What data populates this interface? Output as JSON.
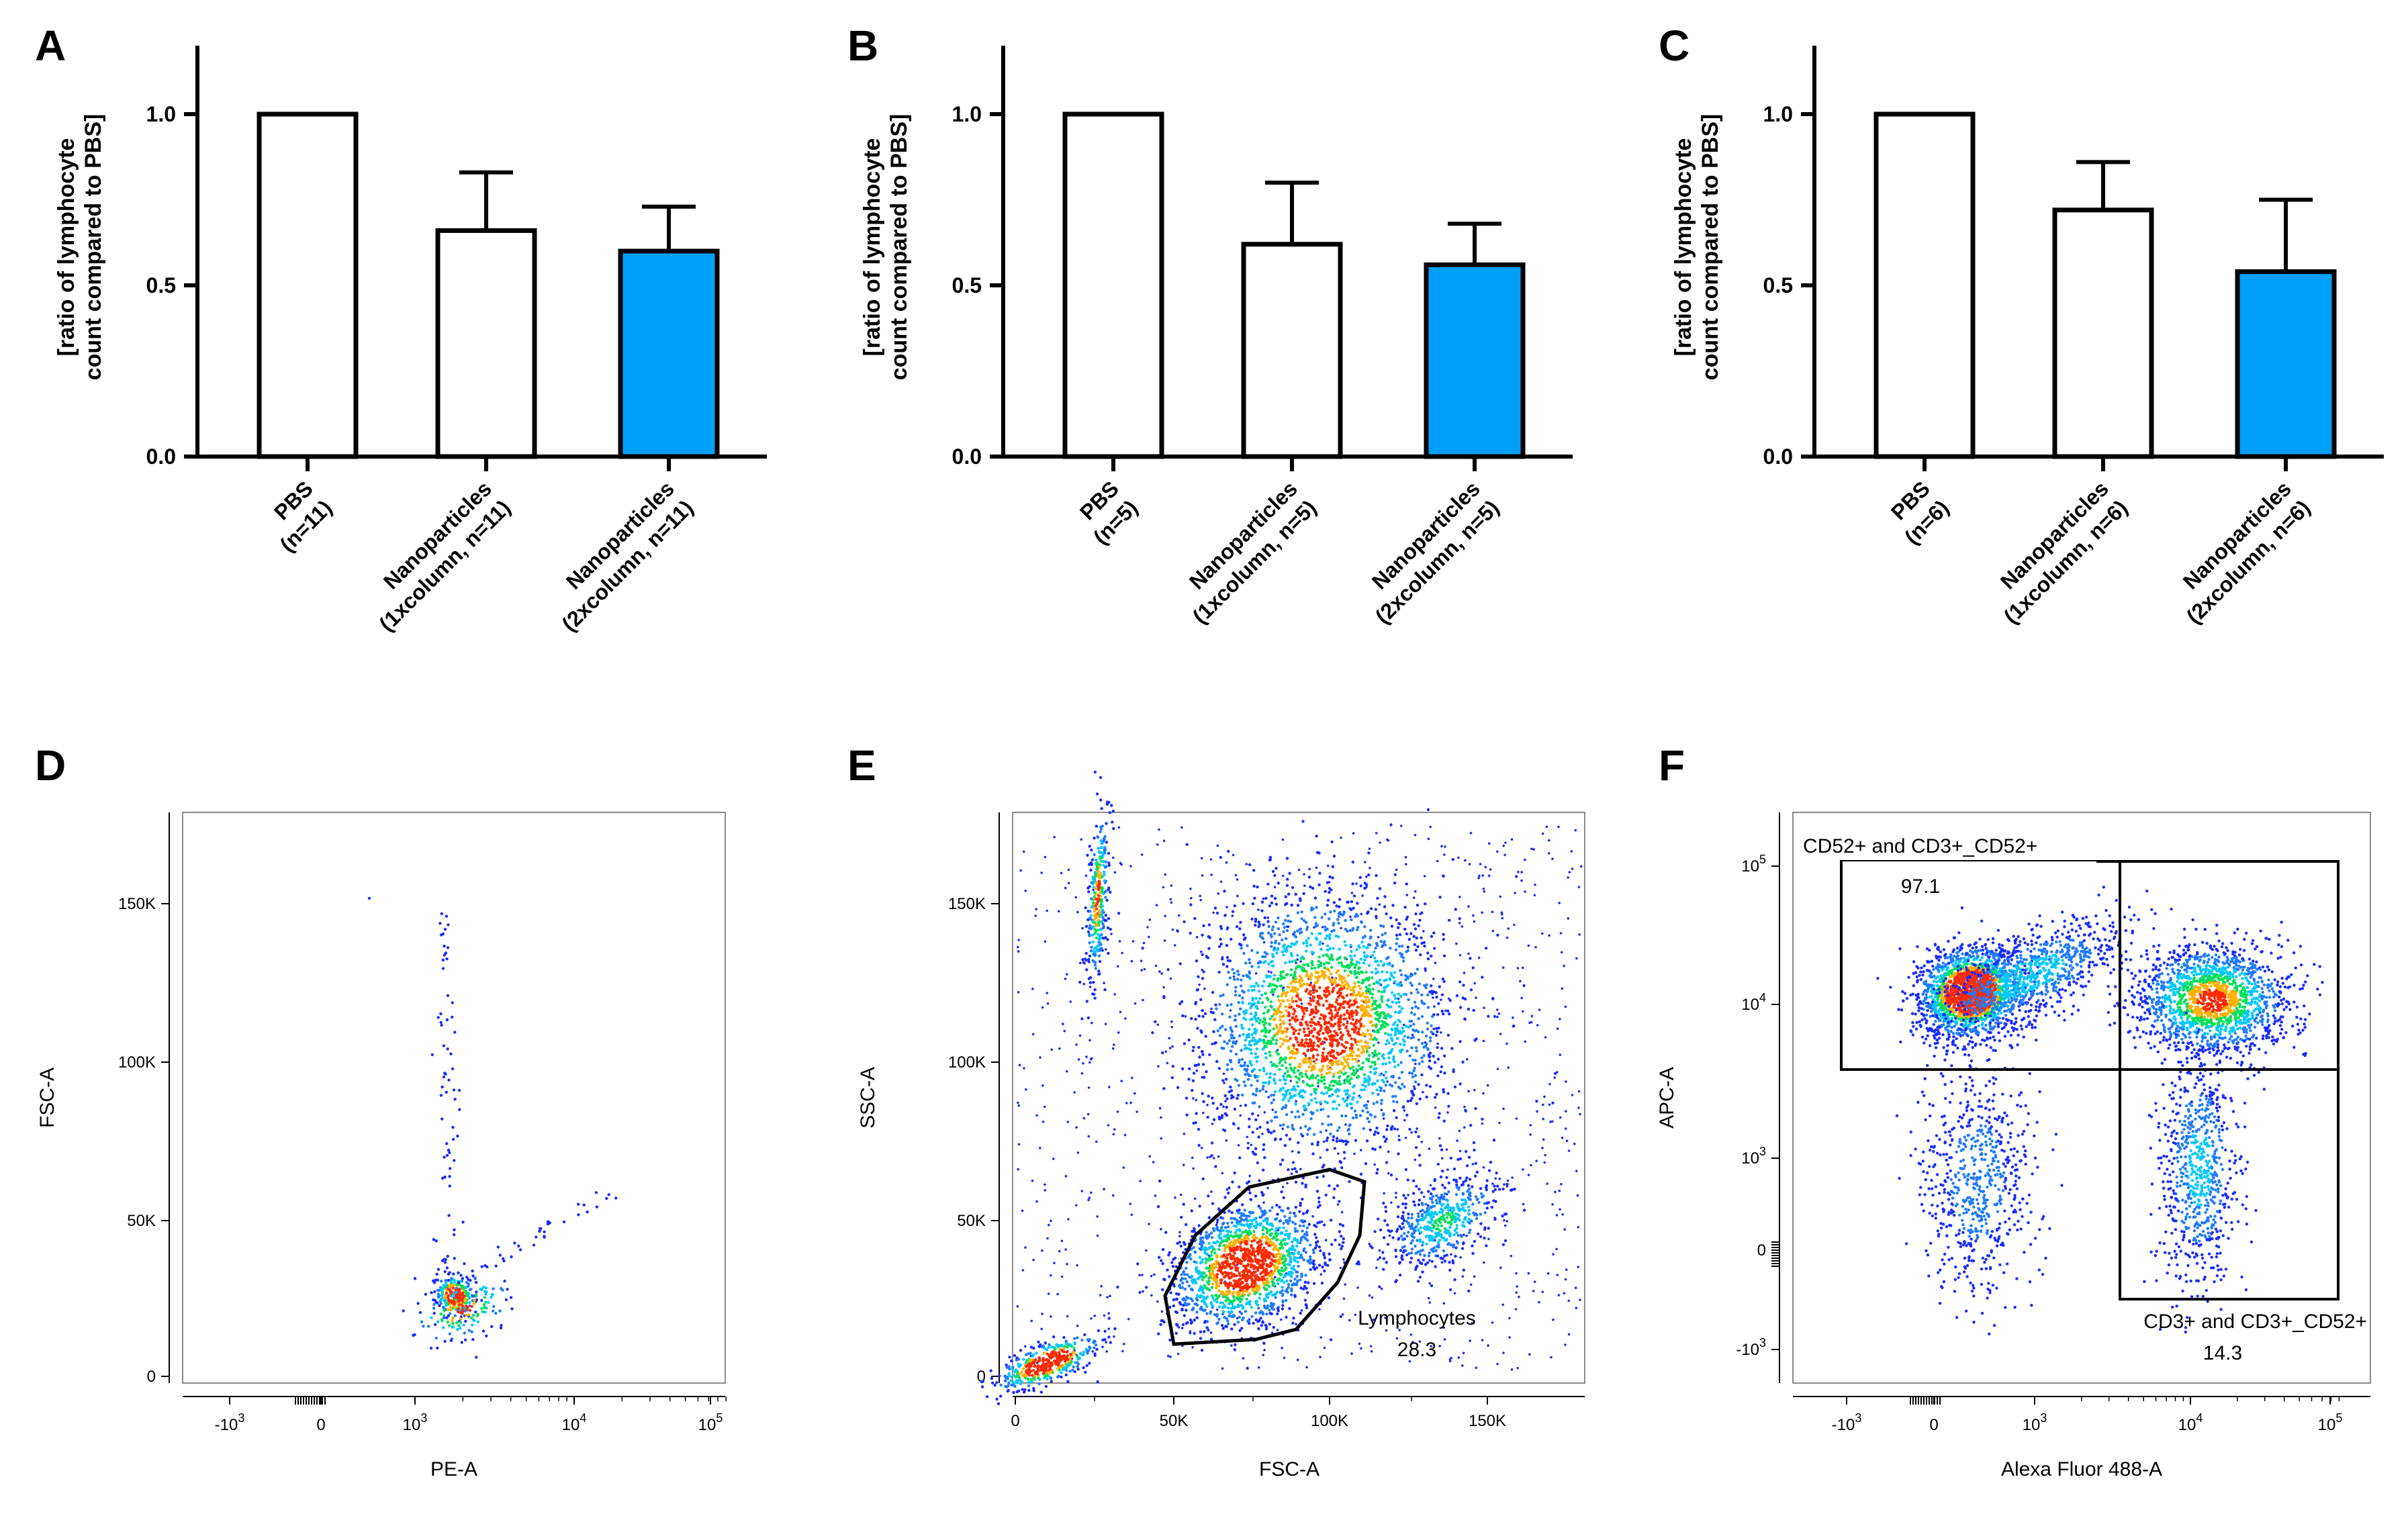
{
  "colors": {
    "accent_bar": "#00A0F8",
    "plain_bar": "#FFFFFF",
    "axis": "#000000",
    "dot_low": "#1a2bff",
    "dot_mid": "#00c8ff",
    "dot_hi": "#00e05a",
    "dot_peak": "#ff2a00"
  },
  "chart_data": [
    {
      "panel": "A",
      "type": "bar",
      "ylabel_line1": "[ratio of lymphocyte",
      "ylabel_line2": "count compared to PBS]",
      "ylim": [
        0,
        1.2
      ],
      "yticks": [
        "0.0",
        "0.5",
        "1.0"
      ],
      "categories": [
        {
          "line1": "PBS",
          "line2": "(n=11)"
        },
        {
          "line1": "Nanoparticles",
          "line2": "(1xcolumn, n=11)"
        },
        {
          "line1": "Nanoparticles",
          "line2": "(2xcolumn, n=11)"
        }
      ],
      "values": [
        1.0,
        0.66,
        0.6
      ],
      "errors": [
        0,
        0.17,
        0.13
      ],
      "filled": [
        false,
        false,
        true
      ]
    },
    {
      "panel": "B",
      "type": "bar",
      "ylabel_line1": "[ratio of lymphocyte",
      "ylabel_line2": "count compared to PBS]",
      "ylim": [
        0,
        1.2
      ],
      "yticks": [
        "0.0",
        "0.5",
        "1.0"
      ],
      "categories": [
        {
          "line1": "PBS",
          "line2": "(n=5)"
        },
        {
          "line1": "Nanoparticles",
          "line2": "(1xcolumn, n=5)"
        },
        {
          "line1": "Nanoparticles",
          "line2": "(2xcolumn, n=5)"
        }
      ],
      "values": [
        1.0,
        0.62,
        0.56
      ],
      "errors": [
        0,
        0.18,
        0.12
      ],
      "filled": [
        false,
        false,
        true
      ]
    },
    {
      "panel": "C",
      "type": "bar",
      "ylabel_line1": "[ratio of lymphocyte",
      "ylabel_line2": "count compared to PBS]",
      "ylim": [
        0,
        1.2
      ],
      "yticks": [
        "0.0",
        "0.5",
        "1.0"
      ],
      "categories": [
        {
          "line1": "PBS",
          "line2": "(n=6)"
        },
        {
          "line1": "Nanoparticles",
          "line2": "(1xcolumn, n=6)"
        },
        {
          "line1": "Nanoparticles",
          "line2": "(2xcolumn, n=6)"
        }
      ],
      "values": [
        1.0,
        0.72,
        0.54
      ],
      "errors": [
        0,
        0.14,
        0.21
      ],
      "filled": [
        false,
        false,
        true
      ]
    },
    {
      "panel": "D",
      "type": "scatter",
      "xlabel": "PE-A",
      "ylabel": "FSC-A",
      "xticks": [
        {
          "base": "-10",
          "exp": "3"
        },
        {
          "base": "0",
          "exp": ""
        },
        {
          "base": "10",
          "exp": "3"
        },
        {
          "base": "10",
          "exp": "4"
        },
        {
          "base": "10",
          "exp": "5"
        }
      ],
      "yticks": [
        "0",
        "50K",
        "100K",
        "150K"
      ]
    },
    {
      "panel": "E",
      "type": "scatter",
      "xlabel": "FSC-A",
      "ylabel": "SSC-A",
      "xticks": [
        "0",
        "50K",
        "100K",
        "150K"
      ],
      "yticks": [
        "0",
        "50K",
        "100K",
        "150K"
      ],
      "gate": {
        "name": "Lymphocytes",
        "value": "28.3"
      }
    },
    {
      "panel": "F",
      "type": "scatter",
      "xlabel": "Alexa Fluor 488-A",
      "ylabel": "APC-A",
      "xticks": [
        {
          "base": "-10",
          "exp": "3"
        },
        {
          "base": "0",
          "exp": ""
        },
        {
          "base": "10",
          "exp": "3"
        },
        {
          "base": "10",
          "exp": "4"
        },
        {
          "base": "10",
          "exp": "5"
        }
      ],
      "yticks": [
        {
          "base": "-10",
          "exp": "3"
        },
        {
          "base": "0",
          "exp": ""
        },
        {
          "base": "10",
          "exp": "3"
        },
        {
          "base": "10",
          "exp": "4"
        },
        {
          "base": "10",
          "exp": "5"
        }
      ],
      "gates": [
        {
          "name": "CD52+ and CD3+_CD52+",
          "value": "97.1"
        },
        {
          "name": "CD3+ and CD3+_CD52+",
          "value": "14.3"
        }
      ]
    }
  ]
}
